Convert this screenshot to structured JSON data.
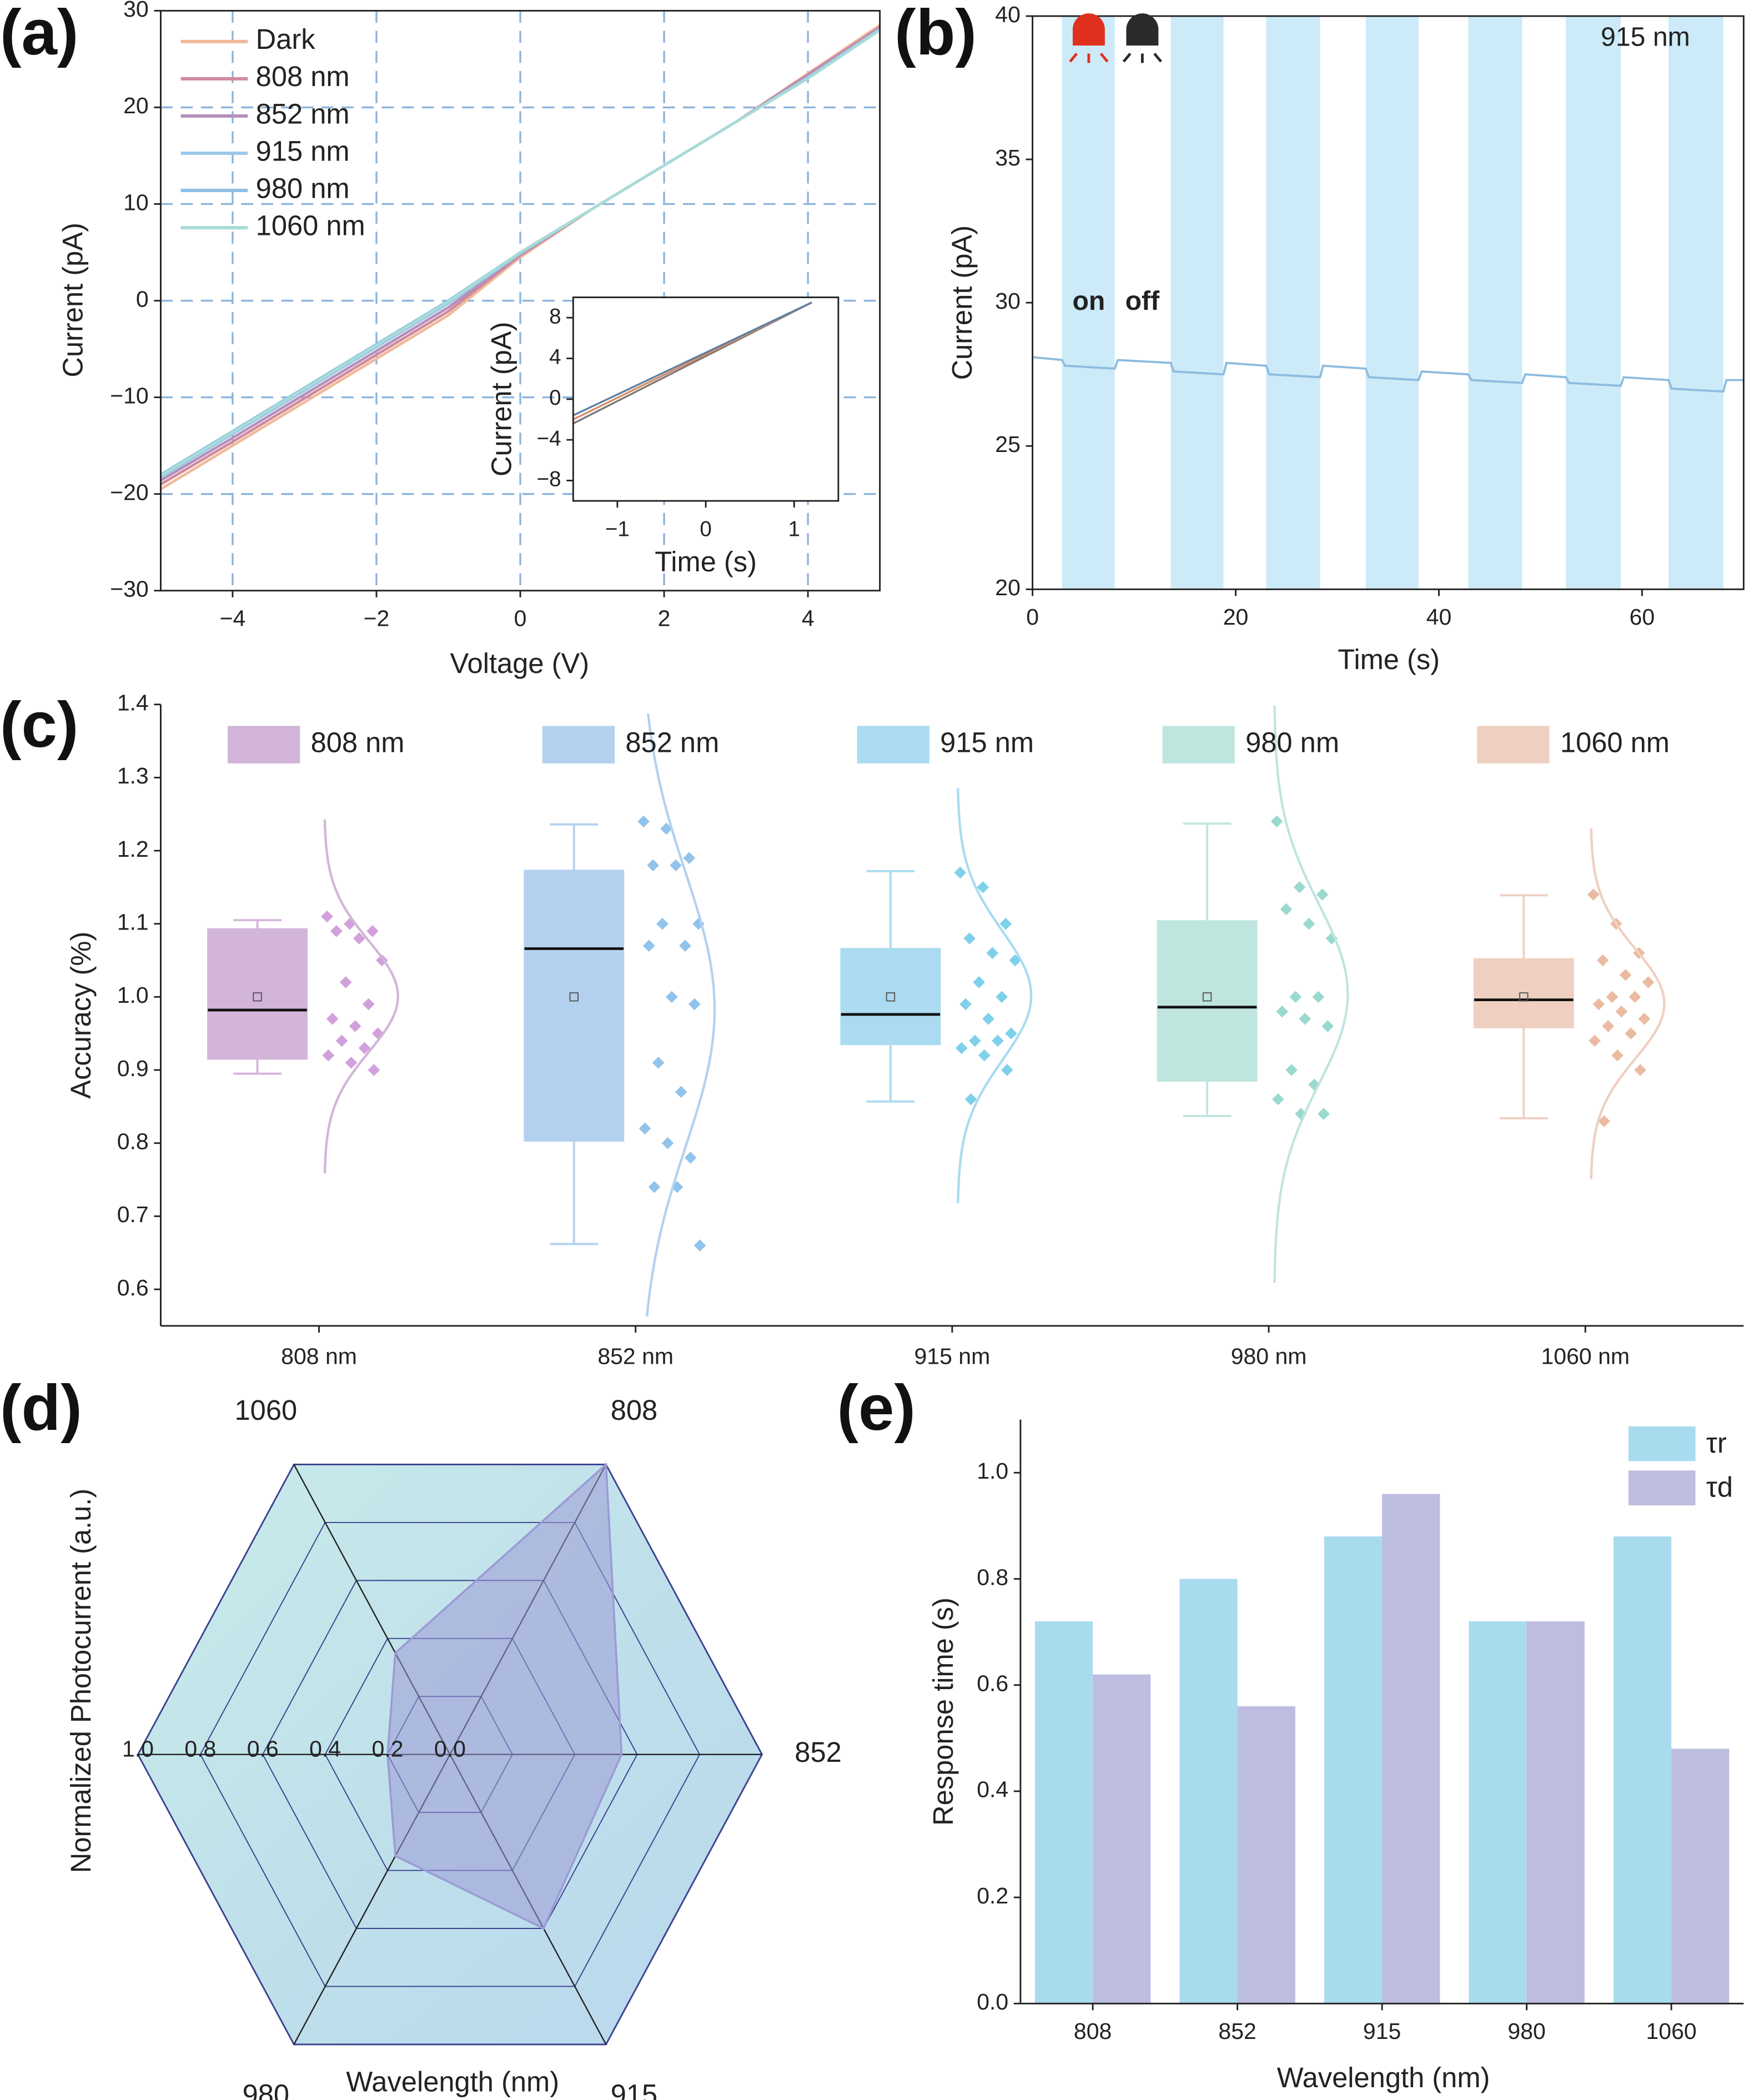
{
  "chart_data": [
    {
      "type": "line",
      "panel_label": "(a)",
      "xlabel": "Voltage (V)",
      "ylabel": "Current (pA)",
      "xlim": [
        -5,
        5
      ],
      "xticks": [
        {
          "value": -4,
          "label": "−4"
        },
        {
          "value": -2,
          "label": "−2"
        },
        0,
        2,
        4
      ],
      "ylim": [
        -30,
        30
      ],
      "yticks": [
        {
          "value": -30,
          "label": "−30"
        },
        {
          "value": -20,
          "label": "−20"
        },
        {
          "value": -10,
          "label": "−10"
        },
        0,
        10,
        20,
        30
      ],
      "grid": true,
      "grid_style": "dashed",
      "legend": "upper left",
      "x": [
        -5,
        -4,
        -3,
        -2,
        -1,
        0,
        1,
        2,
        3,
        4,
        5
      ],
      "series": [
        {
          "name": "Dark",
          "color": "#f0b99a",
          "values": [
            -19.5,
            -15,
            -10.5,
            -6,
            -1.5,
            4.5,
            9.5,
            14,
            18.5,
            23.5,
            28.5
          ]
        },
        {
          "name": "808 nm",
          "color": "#d0899c",
          "values": [
            -19,
            -14.6,
            -10.1,
            -5.6,
            -1.1,
            4.7,
            9.5,
            14,
            18.5,
            23.4,
            28.3
          ]
        },
        {
          "name": "852 nm",
          "color": "#b58fbc",
          "values": [
            -18.6,
            -14.2,
            -9.7,
            -5.2,
            -0.7,
            4.8,
            9.5,
            14,
            18.5,
            23.3,
            28.2
          ]
        },
        {
          "name": "915 nm",
          "color": "#9dc8e8",
          "values": [
            -18.3,
            -13.8,
            -9.3,
            -4.8,
            -0.3,
            4.9,
            9.5,
            14,
            18.5,
            23.1,
            28.1
          ]
        },
        {
          "name": "980 nm",
          "color": "#8cbfe6",
          "values": [
            -18,
            -13.5,
            -9,
            -4.5,
            0,
            5,
            9.5,
            14,
            18.5,
            23,
            28
          ]
        },
        {
          "name": "1060 nm",
          "color": "#a8dcd6",
          "values": [
            -18.1,
            -13.6,
            -9.1,
            -4.6,
            -0.1,
            5,
            9.5,
            14,
            18.5,
            23,
            28
          ]
        }
      ]
    },
    {
      "type": "line",
      "xlabel": "Time (s)",
      "ylabel": "Current (pA)",
      "xlim": [
        -1.5,
        1.5
      ],
      "xticks": [
        {
          "value": -1,
          "label": "−1"
        },
        0,
        1
      ],
      "ylim": [
        -10,
        10
      ],
      "yticks": [
        {
          "value": -8,
          "label": "−8"
        },
        {
          "value": -4,
          "label": "−4"
        },
        0,
        4,
        8
      ],
      "x": [
        -1.5,
        1.2
      ],
      "series": [
        {
          "color": "#7a7a7a",
          "values": [
            -2.4,
            9.5
          ]
        },
        {
          "color": "#d98b5f",
          "values": [
            -2,
            9.5
          ]
        },
        {
          "color": "#5a7fa8",
          "values": [
            -1.6,
            9.5
          ]
        }
      ]
    },
    {
      "type": "line",
      "panel_label": "(b)",
      "xlabel": "Time (s)",
      "ylabel": "Current (pA)",
      "xlim": [
        0,
        70
      ],
      "xticks": [
        0,
        20,
        40,
        60
      ],
      "ylim": [
        20,
        40
      ],
      "yticks": [
        20,
        25,
        30,
        35,
        40
      ],
      "annotations": [
        "915 nm",
        "on",
        "off"
      ],
      "shade_color": "#cdeaf8",
      "shaded_intervals": [
        [
          2.9,
          8.1
        ],
        [
          13.6,
          18.8
        ],
        [
          23,
          28.3
        ],
        [
          32.8,
          38
        ],
        [
          42.9,
          48.2
        ],
        [
          52.5,
          57.9
        ],
        [
          62.6,
          68
        ]
      ],
      "x": [
        0,
        2.9,
        3.2,
        8.1,
        8.4,
        13.6,
        13.9,
        18.8,
        19.1,
        23,
        23.3,
        28.3,
        28.6,
        32.8,
        33.1,
        38,
        38.3,
        42.9,
        43.2,
        48.2,
        48.5,
        52.5,
        52.8,
        57.9,
        58.2,
        62.6,
        62.9,
        68,
        68.3,
        70
      ],
      "series": [
        {
          "color": "#8dbce0",
          "values": [
            28.1,
            28.0,
            27.8,
            27.7,
            28.0,
            27.9,
            27.6,
            27.5,
            27.9,
            27.8,
            27.5,
            27.4,
            27.8,
            27.7,
            27.4,
            27.3,
            27.6,
            27.5,
            27.3,
            27.2,
            27.5,
            27.4,
            27.2,
            27.1,
            27.4,
            27.3,
            27.0,
            26.9,
            27.3,
            27.3
          ]
        }
      ]
    },
    {
      "type": "box",
      "panel_label": "(c)",
      "ylabel": "Accuracy (%)",
      "categories": [
        "808 nm",
        "852 nm",
        "915 nm",
        "980 nm",
        "1060 nm"
      ],
      "ylim": [
        0.55,
        1.4
      ],
      "yticks": [
        0.6,
        0.7,
        0.8,
        0.9,
        {
          "value": 1,
          "label": "1.0"
        },
        1.1,
        1.2,
        1.3,
        1.4
      ],
      "series": [
        {
          "name": "808 nm",
          "color": "#d3b5d9",
          "whisker_low": 0.895,
          "q1": 0.915,
          "median": 0.982,
          "q3": 1.093,
          "whisker_high": 1.105,
          "mean": 1.0,
          "points": [
            1.11,
            1.1,
            1.09,
            1.09,
            1.08,
            1.05,
            1.02,
            0.99,
            0.97,
            0.96,
            0.95,
            0.94,
            0.93,
            0.92,
            0.91,
            0.9
          ]
        },
        {
          "name": "852 nm",
          "color": "#b3d1ef",
          "whisker_low": 0.662,
          "q1": 0.803,
          "median": 1.066,
          "q3": 1.173,
          "whisker_high": 1.236,
          "mean": 1.0,
          "points": [
            1.24,
            1.23,
            1.19,
            1.18,
            1.18,
            1.1,
            1.1,
            1.07,
            1.07,
            1.0,
            0.99,
            0.91,
            0.87,
            0.82,
            0.8,
            0.78,
            0.74,
            0.74,
            0.66
          ]
        },
        {
          "name": "915 nm",
          "color": "#aadbf0",
          "whisker_low": 0.857,
          "q1": 0.935,
          "median": 0.976,
          "q3": 1.066,
          "whisker_high": 1.172,
          "mean": 1.0,
          "points": [
            1.17,
            1.15,
            1.1,
            1.08,
            1.06,
            1.05,
            1.02,
            1.0,
            0.99,
            0.97,
            0.95,
            0.94,
            0.94,
            0.93,
            0.92,
            0.9,
            0.86
          ]
        },
        {
          "name": "980 nm",
          "color": "#bfe5df",
          "whisker_low": 0.837,
          "q1": 0.885,
          "median": 0.986,
          "q3": 1.104,
          "whisker_high": 1.237,
          "mean": 1.0,
          "points": [
            1.24,
            1.15,
            1.14,
            1.12,
            1.1,
            1.08,
            1.0,
            1.0,
            0.98,
            0.97,
            0.96,
            0.9,
            0.88,
            0.86,
            0.84,
            0.84
          ]
        },
        {
          "name": "1060 nm",
          "color": "#efd0c0",
          "whisker_low": 0.834,
          "q1": 0.958,
          "median": 0.996,
          "q3": 1.052,
          "whisker_high": 1.139,
          "mean": 1.0,
          "points": [
            1.14,
            1.1,
            1.06,
            1.05,
            1.03,
            1.02,
            1.0,
            1.0,
            0.99,
            0.98,
            0.97,
            0.96,
            0.95,
            0.94,
            0.92,
            0.9,
            0.83
          ]
        }
      ]
    },
    {
      "type": "radar",
      "panel_label": "(d)",
      "xlabel": "Wavelength (nm)",
      "ylabel": "Normalized Photocurrent (a.u.)",
      "categories": [
        "808",
        "852",
        "915",
        "980",
        null,
        "1060"
      ],
      "values": [
        1.0,
        0.55,
        0.6,
        0.35,
        0.2,
        0.35
      ],
      "rlim": [
        0,
        1
      ],
      "rticks": [
        {
          "value": 0,
          "label": "0.0"
        },
        0.2,
        0.4,
        0.6,
        0.8,
        {
          "value": 1,
          "label": "1.0"
        }
      ],
      "color": "#9c9ad6"
    },
    {
      "type": "bar",
      "panel_label": "(e)",
      "xlabel": "Wavelength (nm)",
      "ylabel": "Response time (s)",
      "categories": [
        "808",
        "852",
        "915",
        "980",
        "1060"
      ],
      "ylim": [
        0,
        1.1
      ],
      "yticks": [
        {
          "value": 0,
          "label": "0.0"
        },
        0.2,
        0.4,
        0.6,
        0.8,
        {
          "value": 1,
          "label": "1.0"
        }
      ],
      "legend": "upper right",
      "series": [
        {
          "name": "τr",
          "color": "#a9dbef",
          "values": [
            0.72,
            0.8,
            0.88,
            0.72,
            0.88
          ]
        },
        {
          "name": "τd",
          "color": "#bdbde0",
          "values": [
            0.62,
            0.56,
            0.96,
            0.72,
            0.48
          ]
        }
      ]
    }
  ]
}
